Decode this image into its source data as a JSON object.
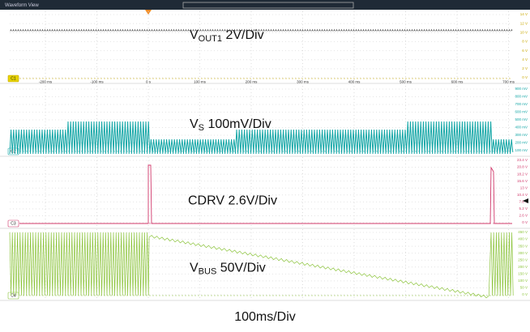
{
  "header": {
    "title": "Waveform View"
  },
  "x_ticks": [
    "-200 ms",
    "-100 ms",
    "0 s",
    "100 ms",
    "200 ms",
    "300 ms",
    "400 ms",
    "500 ms",
    "600 ms",
    "700 ms"
  ],
  "panels": [
    {
      "channel": "C1",
      "label": {
        "main": "V",
        "sub": "OUT1",
        "rest": " 2V/Div"
      },
      "y_ticks": [
        "14 V",
        "12 V",
        "10 V",
        "8 V",
        "6 V",
        "4 V",
        "2 V",
        "0 V"
      ]
    },
    {
      "channel": "C2",
      "label": {
        "main": "V",
        "sub": "S",
        "rest": " 100mV/Div"
      },
      "y_ticks": [
        "900 mV",
        "800 mV",
        "700 mV",
        "600 mV",
        "500 mV",
        "400 mV",
        "300 mV",
        "200 mV",
        "100 mV"
      ]
    },
    {
      "channel": "C3",
      "label": {
        "main": "CDRV 2.6V/Div",
        "sub": "",
        "rest": ""
      },
      "y_ticks": [
        "23.4 V",
        "20.8 V",
        "18.2 V",
        "15.6 V",
        "13 V",
        "10.4 V",
        "7.8 V",
        "5.2 V",
        "2.6 V",
        "0 V"
      ]
    },
    {
      "channel": "C4",
      "label": {
        "main": "V",
        "sub": "BUS",
        "rest": " 50V/Div"
      },
      "y_ticks": [
        "450 V",
        "400 V",
        "350 V",
        "300 V",
        "250 V",
        "200 V",
        "150 V",
        "100 V",
        "50 V",
        "0 V"
      ]
    }
  ],
  "footer": {
    "timebase": "100ms/Div"
  }
}
